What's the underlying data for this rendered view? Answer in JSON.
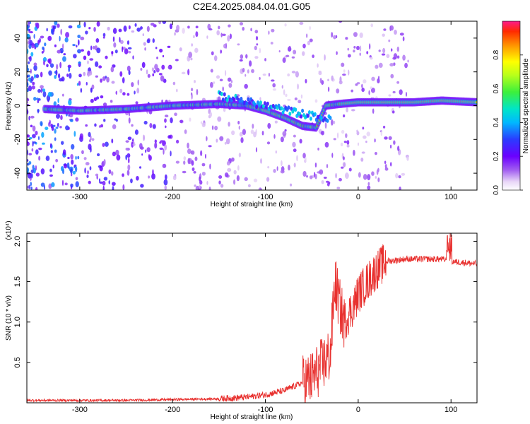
{
  "title": "C2E4.2025.084.04.01.G05",
  "chart_data": [
    {
      "type": "heatmap",
      "xlabel": "Height of straight line (km)",
      "ylabel": "Frequency (Hz)",
      "xlim": [
        -357,
        128
      ],
      "ylim": [
        -50,
        50
      ],
      "xticks": [
        -300,
        -200,
        -100,
        0,
        100
      ],
      "yticks": [
        -40,
        -20,
        0,
        20,
        40
      ],
      "colorbar": {
        "label": "Normalized spectral amplitude",
        "range": [
          0.0,
          1.0
        ],
        "ticks": [
          0.0,
          0.2,
          0.4,
          0.6,
          0.8
        ],
        "colormap": "rainbow"
      },
      "ridge": {
        "description_points_x": [
          -338,
          -300,
          -250,
          -200,
          -150,
          -120,
          -100,
          -80,
          -60,
          -45,
          -35,
          -20,
          0,
          20,
          60,
          90,
          128
        ],
        "description_points_y": [
          -2,
          -3,
          -2,
          0,
          1,
          0,
          -3,
          -7,
          -12,
          -13,
          0,
          1,
          2,
          2,
          2,
          3,
          2
        ]
      }
    },
    {
      "type": "line",
      "xlabel": "Height of straight line (km)",
      "ylabel": "SNR (10 * v/v)",
      "yunit_multiplier": "(x10⁴)",
      "xlim": [
        -357,
        128
      ],
      "ylim": [
        0,
        2.1
      ],
      "xticks": [
        -300,
        -200,
        -100,
        0,
        100
      ],
      "yticks": [
        0.5,
        1.0,
        1.5,
        2.0
      ],
      "series": [
        {
          "color": "#e8302e",
          "x": [
            -357,
            -300,
            -250,
            -200,
            -150,
            -120,
            -100,
            -80,
            -60,
            -50,
            -40,
            -30,
            -25,
            -20,
            -15,
            -10,
            -5,
            0,
            10,
            20,
            30,
            50,
            70,
            90,
            100,
            110,
            128
          ],
          "y": [
            0.03,
            0.03,
            0.03,
            0.04,
            0.05,
            0.07,
            0.1,
            0.15,
            0.25,
            0.3,
            0.45,
            0.6,
            1.5,
            1.2,
            1.0,
            1.1,
            1.2,
            1.35,
            1.5,
            1.65,
            1.75,
            1.78,
            1.78,
            1.78,
            1.75,
            1.74,
            1.72
          ]
        }
      ]
    }
  ]
}
